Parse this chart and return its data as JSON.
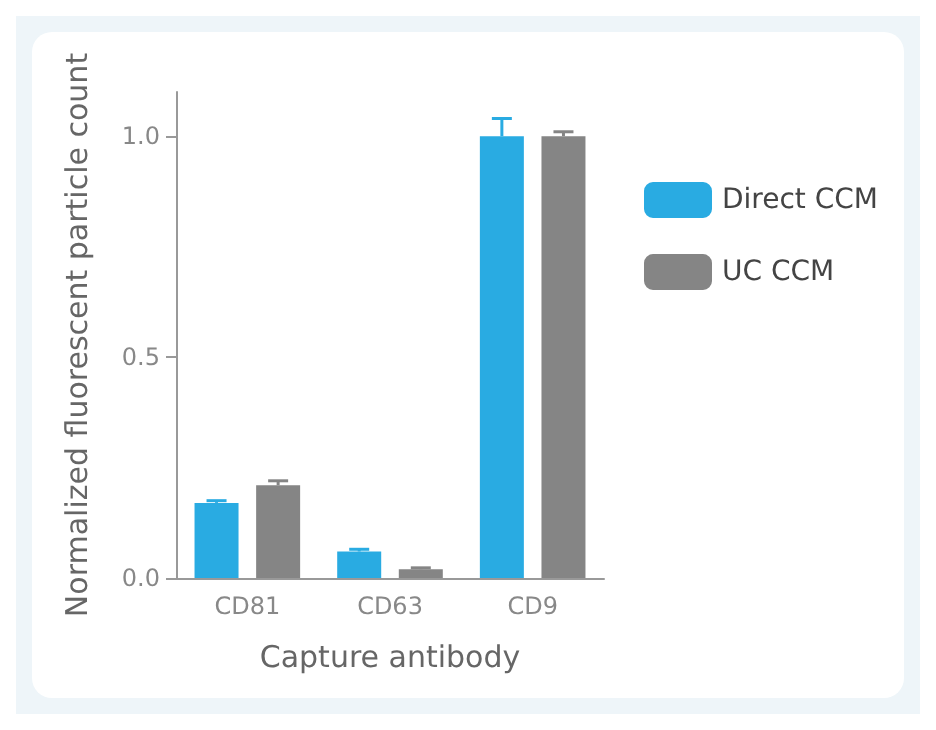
{
  "chart_data": {
    "type": "bar",
    "xlabel": "Capture antibody",
    "ylabel": "Normalized fluorescent particle count",
    "categories": [
      "CD81",
      "CD63",
      "CD9"
    ],
    "series": [
      {
        "name": "Direct CCM",
        "color": "#29abe2",
        "values": [
          0.17,
          0.06,
          1.0
        ],
        "errors": [
          0.005,
          0.005,
          0.04
        ]
      },
      {
        "name": "UC CCM",
        "color": "#858585",
        "values": [
          0.21,
          0.02,
          1.0
        ],
        "errors": [
          0.01,
          0.003,
          0.01
        ]
      }
    ],
    "ylim": [
      0,
      1.1
    ],
    "yticks": [
      {
        "value": 0,
        "label": "0.0"
      },
      {
        "value": 0.5,
        "label": "0.5"
      },
      {
        "value": 1,
        "label": "1.0"
      }
    ],
    "grid": false,
    "legend": "right"
  }
}
